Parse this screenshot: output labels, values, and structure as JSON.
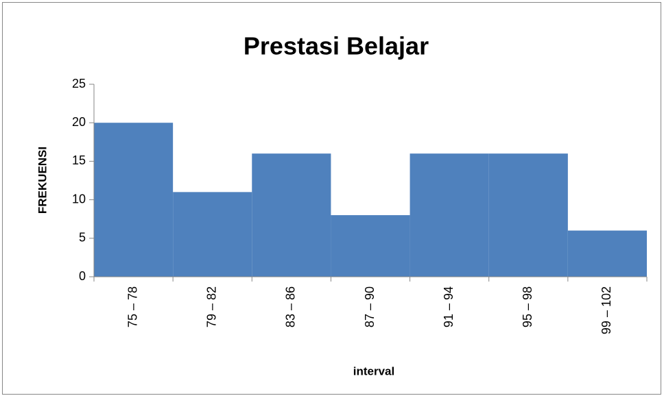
{
  "chart_data": {
    "type": "bar",
    "title": "Prestasi Belajar",
    "x_label": "interval",
    "y_label": "FREKUENSI",
    "categories": [
      "75 – 78",
      "79 – 82",
      "83 – 86",
      "87 – 90",
      "91 – 94",
      "95 – 98",
      "99 – 102"
    ],
    "values": [
      20,
      11,
      16,
      8,
      16,
      16,
      6
    ],
    "color": "#4f81bd",
    "ylim": [
      0,
      25
    ],
    "yticks": [
      0,
      5,
      10,
      15,
      20,
      25
    ],
    "grid": false
  }
}
